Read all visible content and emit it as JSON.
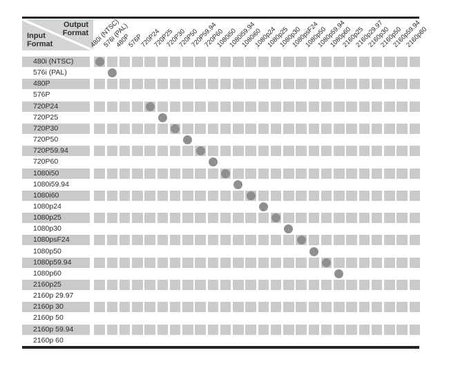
{
  "header": {
    "output_label": "Output Format",
    "input_label": "Input Format"
  },
  "output_formats": [
    "480i (NTSC)",
    "576i (PAL)",
    "480P",
    "576P",
    "720P24",
    "720P25",
    "720P30",
    "720P50",
    "720P59.94",
    "720P60",
    "1080i50",
    "1080i59.94",
    "1080i60",
    "1080p24",
    "1080p25",
    "1080p30",
    "1080psF24",
    "1080p50",
    "1080p59.94",
    "1080p60",
    "2160p25",
    "2160p29.97",
    "2160p30",
    "2160p50",
    "2160p59.94",
    "2160p60"
  ],
  "input_formats": [
    "480i (NTSC)",
    "576i (PAL)",
    "480P",
    "576P",
    "720P24",
    "720P25",
    "720P30",
    "720P50",
    "720P59.94",
    "720P60",
    "1080i50",
    "1080i59.94",
    "1080i60",
    "1080p24",
    "1080p25",
    "1080p30",
    "1080psF24",
    "1080p50",
    "1080p59.94",
    "1080p60",
    "2160p25",
    "2160p 29.97",
    "2160p 30",
    "2160p 50",
    "2160p 59.94",
    "2160p 60"
  ],
  "conversions": [
    {
      "input": "480i (NTSC)",
      "output": "480i (NTSC)"
    },
    {
      "input": "576i (PAL)",
      "output": "576i (PAL)"
    },
    {
      "input": "720P24",
      "output": "720P24"
    },
    {
      "input": "720P25",
      "output": "720P25"
    },
    {
      "input": "720P30",
      "output": "720P30"
    },
    {
      "input": "720P50",
      "output": "720P50"
    },
    {
      "input": "720P59.94",
      "output": "720P59.94"
    },
    {
      "input": "720P60",
      "output": "720P60"
    },
    {
      "input": "1080i50",
      "output": "1080i50"
    },
    {
      "input": "1080i59.94",
      "output": "1080i59.94"
    },
    {
      "input": "1080i60",
      "output": "1080i60"
    },
    {
      "input": "1080p24",
      "output": "1080p24"
    },
    {
      "input": "1080p25",
      "output": "1080p25"
    },
    {
      "input": "1080p30",
      "output": "1080p30"
    },
    {
      "input": "1080psF24",
      "output": "1080psF24"
    },
    {
      "input": "1080p50",
      "output": "1080p50"
    },
    {
      "input": "1080p59.94",
      "output": "1080p59.94"
    },
    {
      "input": "1080p60",
      "output": "1080p60"
    }
  ],
  "colors": {
    "cell_gray": "#c9cacc",
    "corner_gray": "#d3d4d6",
    "dot_gray": "#8d8f91",
    "rule_black": "#262021",
    "text_dark": "#2a2a2a"
  }
}
